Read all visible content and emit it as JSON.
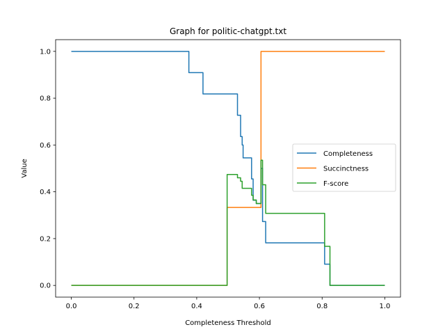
{
  "chart_data": {
    "type": "line",
    "title": "Graph for politic-chatgpt.txt",
    "xlabel": "Completeness Threshold",
    "ylabel": "Value",
    "xlim": [
      -0.05,
      1.05
    ],
    "ylim": [
      -0.05,
      1.05
    ],
    "xticks": [
      0.0,
      0.2,
      0.4,
      0.6,
      0.8,
      1.0
    ],
    "xtick_labels": [
      "0.0",
      "0.2",
      "0.4",
      "0.6",
      "0.8",
      "1.0"
    ],
    "yticks": [
      0.0,
      0.2,
      0.4,
      0.6,
      0.8,
      1.0
    ],
    "ytick_labels": [
      "0.0",
      "0.2",
      "0.4",
      "0.6",
      "0.8",
      "1.0"
    ],
    "grid": false,
    "legend_position": "center-right",
    "series": [
      {
        "name": "Completeness",
        "color": "#1f77b4",
        "x": [
          0.0,
          0.375,
          0.375,
          0.42,
          0.42,
          0.53,
          0.53,
          0.54,
          0.54,
          0.545,
          0.545,
          0.548,
          0.548,
          0.575,
          0.575,
          0.58,
          0.58,
          0.59,
          0.59,
          0.605,
          0.605,
          0.61,
          0.61,
          0.62,
          0.62,
          0.808,
          0.808,
          0.825,
          0.825,
          1.0
        ],
        "y": [
          1.0,
          1.0,
          0.909,
          0.909,
          0.818,
          0.818,
          0.727,
          0.727,
          0.636,
          0.636,
          0.6,
          0.6,
          0.545,
          0.545,
          0.455,
          0.455,
          0.364,
          0.364,
          0.35,
          0.35,
          0.5,
          0.5,
          0.273,
          0.273,
          0.182,
          0.182,
          0.091,
          0.091,
          0.0,
          0.0
        ]
      },
      {
        "name": "Succinctness",
        "color": "#ff7f0e",
        "x": [
          0.0,
          0.497,
          0.497,
          0.605,
          0.605,
          1.0
        ],
        "y": [
          0.0,
          0.0,
          0.333,
          0.333,
          1.0,
          1.0
        ]
      },
      {
        "name": "F-score",
        "color": "#2ca02c",
        "x": [
          0.0,
          0.497,
          0.497,
          0.53,
          0.53,
          0.54,
          0.54,
          0.545,
          0.545,
          0.575,
          0.575,
          0.58,
          0.58,
          0.59,
          0.59,
          0.605,
          0.605,
          0.61,
          0.61,
          0.62,
          0.62,
          0.808,
          0.808,
          0.825,
          0.825,
          1.0
        ],
        "y": [
          0.0,
          0.0,
          0.474,
          0.474,
          0.46,
          0.46,
          0.445,
          0.445,
          0.415,
          0.415,
          0.385,
          0.385,
          0.365,
          0.365,
          0.35,
          0.35,
          0.535,
          0.535,
          0.43,
          0.43,
          0.308,
          0.308,
          0.167,
          0.167,
          0.0,
          0.0
        ]
      }
    ]
  }
}
